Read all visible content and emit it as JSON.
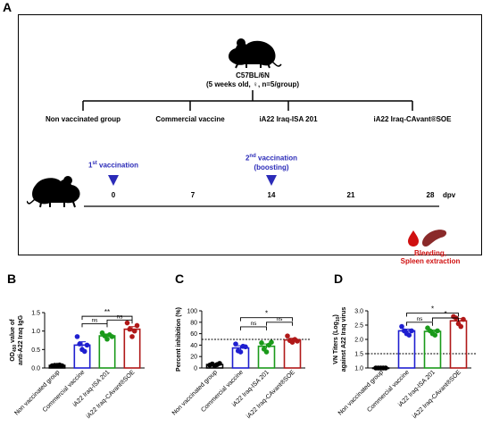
{
  "panel_a": {
    "letter": "A",
    "mouse_strain": "C57BL/6N",
    "mouse_detail": "(5 weeks old, ♀, n=5/group)",
    "groups": [
      "Non vaccinated group",
      "Commercial vaccine",
      "iA22 Iraq-ISA 201",
      "iA22 Iraq-CAvant®SOE"
    ],
    "timeline": {
      "ticks": [
        "0",
        "7",
        "14",
        "21",
        "28"
      ],
      "unit": "dpv",
      "first_vaccination": {
        "sup_num": "1",
        "sup": "st",
        "label": " vaccination"
      },
      "second_vaccination": {
        "sup_num": "2",
        "sup": "nd",
        "label": " vaccination",
        "line2": "(boosting)"
      },
      "endpoint_line1": "Bleeding,",
      "endpoint_line2": "Spleen extraction"
    },
    "colors": {
      "vaccination": "#2b2bb8",
      "endpoint": "#d01010"
    }
  },
  "chart_data": [
    {
      "panel": "B",
      "type": "bar",
      "categories": [
        "Non vaccinated group",
        "Commercial vaccine",
        "iA22 Iraq-ISA 201",
        "iA22 Iraq-CAvant®SOE"
      ],
      "ylabel_line1_pre": "OD",
      "ylabel_line1_sub": "450",
      "ylabel_line1_post": " value of",
      "ylabel_line2": "anti-A22 Iraq IgG",
      "ylim": [
        0,
        1.5
      ],
      "yticks": [
        "0.0",
        "0.5",
        "1.0",
        "1.5"
      ],
      "means": [
        0.07,
        0.62,
        0.87,
        1.05
      ],
      "errors": [
        0.01,
        0.09,
        0.05,
        0.07
      ],
      "points": [
        [
          0.06,
          0.07,
          0.07,
          0.08,
          0.06
        ],
        [
          0.85,
          0.65,
          0.5,
          0.45,
          0.62
        ],
        [
          0.95,
          0.87,
          0.78,
          0.9,
          0.85
        ],
        [
          1.22,
          1.05,
          0.85,
          1.0,
          1.15
        ]
      ],
      "colors": [
        "#000000",
        "#1f1fd0",
        "#1a9a1a",
        "#b01818"
      ],
      "brackets": [
        {
          "from": 1,
          "to": 3,
          "level": 1.4,
          "label": "**"
        },
        {
          "from": 1,
          "to": 2,
          "level": 1.2,
          "label": "ns"
        },
        {
          "from": 2,
          "to": 3,
          "level": 1.3,
          "label": "ns"
        }
      ]
    },
    {
      "panel": "C",
      "type": "bar",
      "categories": [
        "Non vaccinated group",
        "Commercial vaccine",
        "iA22 Iraq-ISA 201",
        "iA22 Iraq-CAvant®SOE"
      ],
      "ylabel": "Percent inhibition (%)",
      "ylim": [
        0,
        100
      ],
      "yticks": [
        "0",
        "20",
        "40",
        "60",
        "80",
        "100"
      ],
      "threshold": 50,
      "means": [
        6,
        35,
        38,
        49
      ],
      "errors": [
        1,
        4,
        4,
        3
      ],
      "points": [
        [
          5,
          7,
          4,
          6,
          8
        ],
        [
          42,
          30,
          28,
          38,
          37
        ],
        [
          44,
          33,
          28,
          40,
          45
        ],
        [
          56,
          48,
          45,
          50,
          47
        ]
      ],
      "colors": [
        "#000000",
        "#1f1fd0",
        "#1a9a1a",
        "#b01818"
      ],
      "brackets": [
        {
          "from": 1,
          "to": 3,
          "level": 88,
          "label": "*"
        },
        {
          "from": 1,
          "to": 2,
          "level": 72,
          "label": "ns"
        },
        {
          "from": 2,
          "to": 3,
          "level": 80,
          "label": "ns"
        }
      ]
    },
    {
      "panel": "D",
      "type": "bar",
      "categories": [
        "Non vaccinated group",
        "Commercial vaccine",
        "iA22 Iraq-ISA 201",
        "iA22 Iraq-CAvant®SOE"
      ],
      "ylabel_line1_pre": "VN Titers (Log",
      "ylabel_line1_sub": "10",
      "ylabel_line1_post": ")",
      "ylabel_line2": "against A22 Iraq virus",
      "ylim": [
        1.0,
        3.0
      ],
      "yticks": [
        "1.0",
        "1.5",
        "2.0",
        "2.5",
        "3.0"
      ],
      "threshold": 1.5,
      "means": [
        1.0,
        2.3,
        2.28,
        2.65
      ],
      "errors": [
        0.0,
        0.06,
        0.05,
        0.08
      ],
      "points": [
        [
          1.0,
          1.0,
          1.0,
          1.0,
          1.0
        ],
        [
          2.45,
          2.3,
          2.2,
          2.15,
          2.3
        ],
        [
          2.4,
          2.3,
          2.2,
          2.15,
          2.3
        ],
        [
          2.8,
          2.75,
          2.55,
          2.45,
          2.7
        ]
      ],
      "colors": [
        "#000000",
        "#1f1fd0",
        "#1a9a1a",
        "#b01818"
      ],
      "brackets": [
        {
          "from": 1,
          "to": 3,
          "level": 2.92,
          "label": "*"
        },
        {
          "from": 1,
          "to": 2,
          "level": 2.6,
          "label": "ns"
        },
        {
          "from": 2,
          "to": 3,
          "level": 2.75,
          "label": "*"
        }
      ]
    }
  ]
}
